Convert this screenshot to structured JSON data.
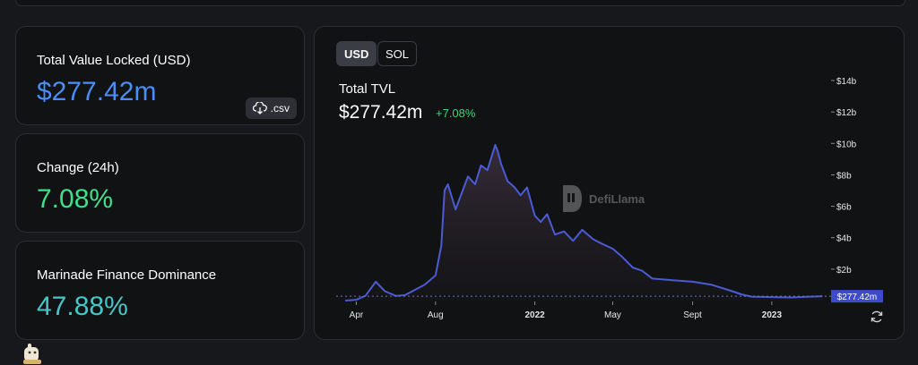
{
  "stats": {
    "tvl_label": "Total Value Locked (USD)",
    "tvl_value": "$277.42m",
    "csv_label": ".csv",
    "change_label": "Change (24h)",
    "change_value": "7.08%",
    "dominance_label": "Marinade Finance Dominance",
    "dominance_value": "47.88%"
  },
  "toggles": {
    "usd": "USD",
    "sol": "SOL"
  },
  "chart_header": {
    "title": "Total TVL",
    "value": "$277.42m",
    "change": "+7.08%"
  },
  "watermark": "DefiLlama",
  "colors": {
    "tvl_value": "#4b8ef7",
    "change_value": "#3fe08a",
    "dominance_value": "#46c7c7",
    "line": "#4a5bd4",
    "price_tag": "#3d4ac9"
  },
  "chart_data": {
    "type": "area",
    "series": [
      {
        "x": [
          "2021-03-15",
          "2021-04-01",
          "2021-04-15",
          "2021-05-01",
          "2021-05-15",
          "2021-06-01",
          "2021-06-15",
          "2021-07-01",
          "2021-07-15",
          "2021-08-01",
          "2021-08-10",
          "2021-08-15",
          "2021-08-20",
          "2021-09-01",
          "2021-09-10",
          "2021-09-20",
          "2021-10-01",
          "2021-10-10",
          "2021-10-20",
          "2021-11-01",
          "2021-11-05",
          "2021-11-10",
          "2021-11-20",
          "2021-12-01",
          "2021-12-10",
          "2021-12-20",
          "2022-01-01",
          "2022-01-10",
          "2022-01-20",
          "2022-02-01",
          "2022-02-15",
          "2022-03-01",
          "2022-03-15",
          "2022-04-01",
          "2022-04-15",
          "2022-05-01",
          "2022-05-15",
          "2022-06-01",
          "2022-06-15",
          "2022-07-01",
          "2022-08-01",
          "2022-09-01",
          "2022-10-01",
          "2022-11-01",
          "2022-11-15",
          "2022-12-01",
          "2023-01-01",
          "2023-02-01",
          "2023-03-01",
          "2023-03-20"
        ],
        "y": [
          0.0,
          0.05,
          0.3,
          1.2,
          0.6,
          0.3,
          0.35,
          0.7,
          1.0,
          1.6,
          3.5,
          7.0,
          7.4,
          5.8,
          6.8,
          7.9,
          7.4,
          8.6,
          8.3,
          9.9,
          9.5,
          8.7,
          7.6,
          7.2,
          6.7,
          7.2,
          5.4,
          5.0,
          5.5,
          4.2,
          4.4,
          3.8,
          4.5,
          3.9,
          3.6,
          3.3,
          2.8,
          2.1,
          1.9,
          1.4,
          1.3,
          1.2,
          1.0,
          0.6,
          0.4,
          0.25,
          0.22,
          0.2,
          0.25,
          0.277
        ]
      }
    ],
    "x_ticks": [
      "Apr",
      "Aug",
      "2022",
      "May",
      "Sept",
      "2023"
    ],
    "y_ticks": [
      "$2b",
      "$4b",
      "$6b",
      "$8b",
      "$10b",
      "$12b",
      "$14b"
    ],
    "ylim": [
      0,
      14
    ],
    "current_label": "$277.42m",
    "current_value": 0.277
  }
}
